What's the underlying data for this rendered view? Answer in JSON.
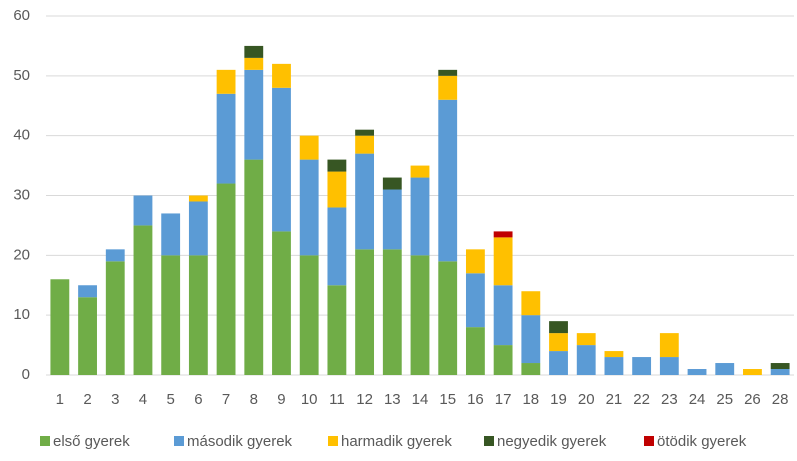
{
  "chart_data": {
    "type": "stacked_bar",
    "categories": [
      "1",
      "2",
      "3",
      "4",
      "5",
      "6",
      "7",
      "8",
      "9",
      "10",
      "11",
      "12",
      "13",
      "14",
      "15",
      "16",
      "17",
      "18",
      "19",
      "20",
      "21",
      "22",
      "23",
      "24",
      "25",
      "26",
      "28"
    ],
    "series": [
      {
        "name": "első gyerek",
        "color": "#70ad47",
        "values": [
          16,
          13,
          19,
          25,
          20,
          20,
          32,
          36,
          24,
          20,
          15,
          21,
          21,
          20,
          19,
          8,
          5,
          2,
          0,
          0,
          0,
          0,
          0,
          0,
          0,
          0,
          0
        ]
      },
      {
        "name": "második gyerek",
        "color": "#5b9bd5",
        "values": [
          0,
          2,
          2,
          5,
          7,
          9,
          15,
          15,
          24,
          16,
          13,
          16,
          10,
          13,
          27,
          9,
          10,
          8,
          4,
          5,
          3,
          3,
          3,
          1,
          2,
          0,
          1
        ]
      },
      {
        "name": "harmadik gyerek",
        "color": "#ffc000",
        "values": [
          0,
          0,
          0,
          0,
          0,
          1,
          4,
          2,
          4,
          4,
          6,
          3,
          0,
          2,
          4,
          4,
          8,
          4,
          3,
          2,
          1,
          0,
          4,
          0,
          0,
          1,
          0
        ]
      },
      {
        "name": "negyedik gyerek",
        "color": "#375623",
        "values": [
          0,
          0,
          0,
          0,
          0,
          0,
          0,
          2,
          0,
          0,
          2,
          1,
          2,
          0,
          1,
          0,
          0,
          0,
          2,
          0,
          0,
          0,
          0,
          0,
          0,
          0,
          1
        ]
      },
      {
        "name": "ötödik gyerek",
        "color": "#c00000",
        "values": [
          0,
          0,
          0,
          0,
          0,
          0,
          0,
          0,
          0,
          0,
          0,
          0,
          0,
          0,
          0,
          0,
          1,
          0,
          0,
          0,
          0,
          0,
          0,
          0,
          0,
          0,
          0
        ]
      }
    ],
    "ylim": [
      0,
      60
    ],
    "yticks": [
      0,
      10,
      20,
      30,
      40,
      50,
      60
    ],
    "grid": true,
    "legend": "bottom"
  }
}
